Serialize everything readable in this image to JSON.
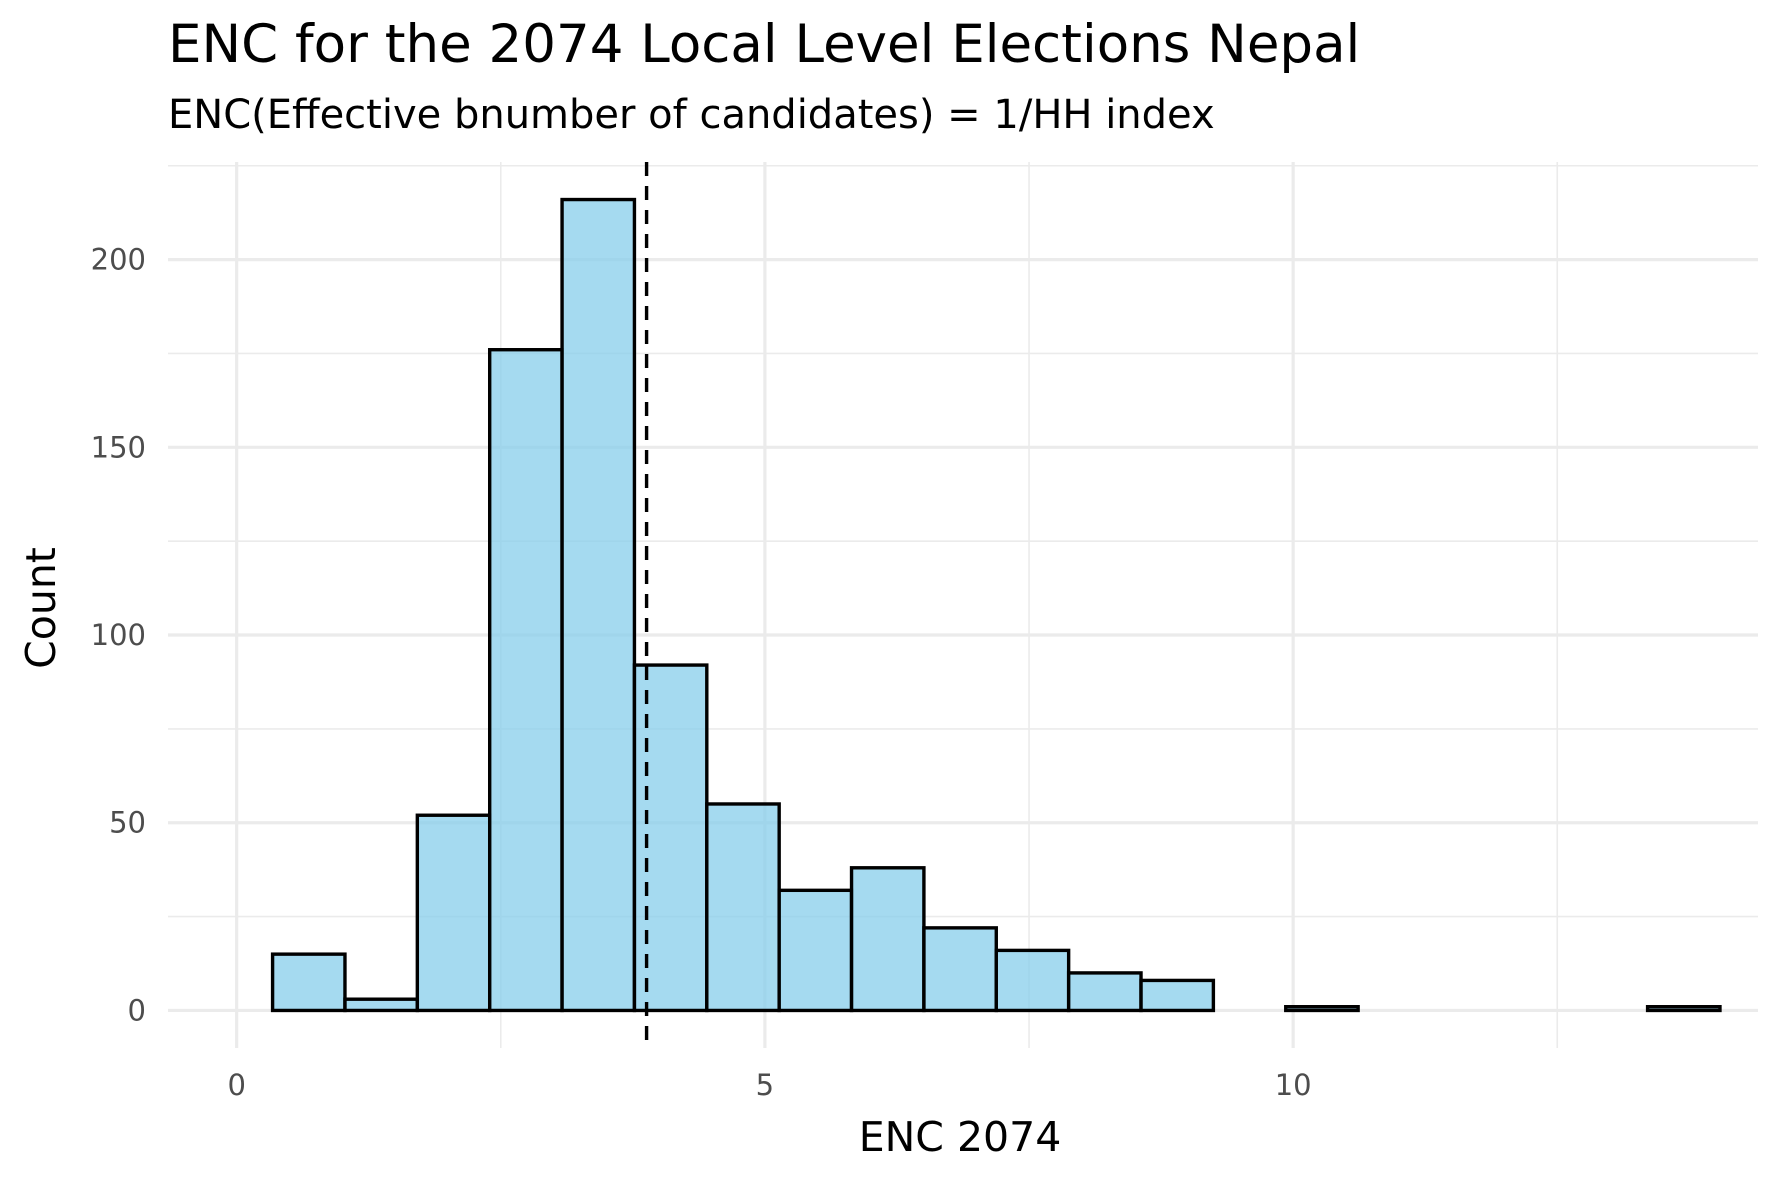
{
  "chart_data": {
    "type": "bar",
    "title": "ENC for the 2074 Local Level Elections Nepal",
    "subtitle": "ENC(Effective bnumber of candidates) = 1/HH index",
    "xlabel": "ENC 2074",
    "ylabel": "Count",
    "xlim": [
      -0.65,
      14.4
    ],
    "ylim": [
      -10,
      226
    ],
    "x_ticks": [
      0,
      5,
      10
    ],
    "x_tick_labels": [
      "0",
      "5",
      "10"
    ],
    "y_ticks": [
      0,
      50,
      100,
      150,
      200
    ],
    "y_tick_labels": [
      "0",
      "50",
      "100",
      "150",
      "200"
    ],
    "x_minor_ticks": [
      2.5,
      7.5,
      12.5
    ],
    "y_minor_ticks": [
      25,
      75,
      125,
      175,
      225
    ],
    "bin_width": 0.685,
    "bins": [
      {
        "x0": 0.34,
        "x1": 1.025,
        "count": 15
      },
      {
        "x0": 1.025,
        "x1": 1.71,
        "count": 3
      },
      {
        "x0": 1.71,
        "x1": 2.395,
        "count": 52
      },
      {
        "x0": 2.395,
        "x1": 3.08,
        "count": 176
      },
      {
        "x0": 3.08,
        "x1": 3.765,
        "count": 216
      },
      {
        "x0": 3.765,
        "x1": 4.45,
        "count": 92
      },
      {
        "x0": 4.45,
        "x1": 5.135,
        "count": 55
      },
      {
        "x0": 5.135,
        "x1": 5.82,
        "count": 32
      },
      {
        "x0": 5.82,
        "x1": 6.505,
        "count": 38
      },
      {
        "x0": 6.505,
        "x1": 7.19,
        "count": 22
      },
      {
        "x0": 7.19,
        "x1": 7.875,
        "count": 16
      },
      {
        "x0": 7.875,
        "x1": 8.56,
        "count": 10
      },
      {
        "x0": 8.56,
        "x1": 9.245,
        "count": 8
      },
      {
        "x0": 9.245,
        "x1": 9.93,
        "count": 0
      },
      {
        "x0": 9.93,
        "x1": 10.615,
        "count": 1
      },
      {
        "x0": 10.615,
        "x1": 11.3,
        "count": 0
      },
      {
        "x0": 11.3,
        "x1": 11.985,
        "count": 0
      },
      {
        "x0": 11.985,
        "x1": 12.67,
        "count": 0
      },
      {
        "x0": 12.67,
        "x1": 13.355,
        "count": 0
      },
      {
        "x0": 13.355,
        "x1": 14.04,
        "count": 1
      }
    ],
    "mean_line": {
      "x": 3.88,
      "style": "dashed"
    },
    "bar_fill": "#87ceeb",
    "bar_opacity": 0.75,
    "bar_outline": "#000000",
    "grid": true,
    "legend": "none"
  }
}
